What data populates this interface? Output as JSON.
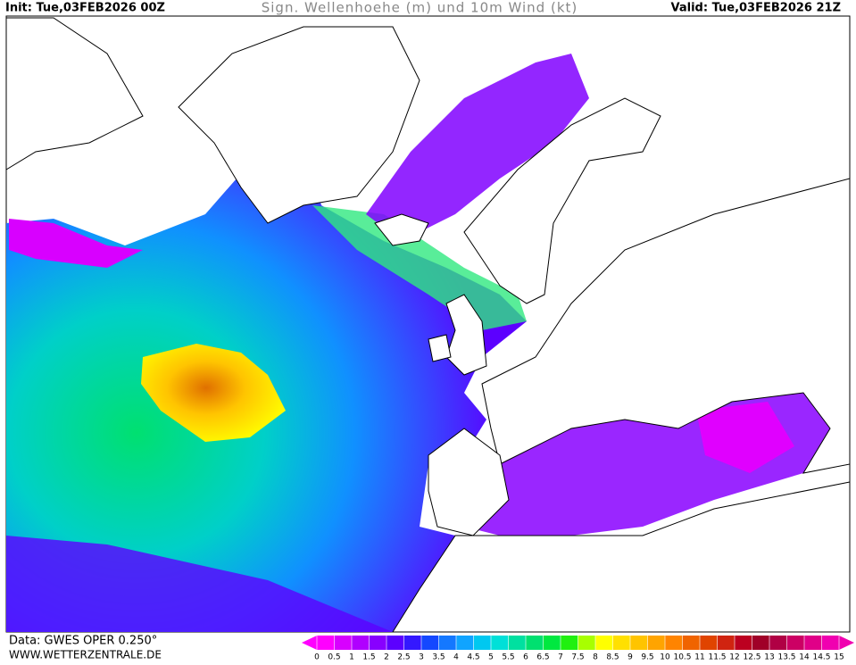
{
  "header": {
    "init": "Init: Tue,03FEB2026 00Z",
    "title": "Sign. Wellenhoehe (m) und 10m Wind (kt)",
    "valid": "Valid: Tue,03FEB2026 21Z"
  },
  "footer": {
    "source": "Data: GWES OPER 0.250°",
    "url": "WWW.WETTERZENTRALE.DE"
  },
  "legend": {
    "ticks": [
      0,
      0.5,
      1,
      1.5,
      2,
      2.5,
      3,
      3.5,
      4,
      4.5,
      5,
      5.5,
      6,
      6.5,
      7,
      7.5,
      8,
      8.5,
      9,
      9.5,
      10,
      10.5,
      11,
      11.5,
      12,
      12.5,
      13,
      13.5,
      14,
      14.5,
      15
    ],
    "colors": [
      "#ff00ff",
      "#d800ff",
      "#b000ff",
      "#8800ff",
      "#5c00ff",
      "#3418ff",
      "#1448ff",
      "#1478ff",
      "#10a4ff",
      "#00c8f0",
      "#00e0d8",
      "#00e0a0",
      "#00e070",
      "#00e840",
      "#20f010",
      "#a8ff00",
      "#ffff00",
      "#ffe000",
      "#ffc400",
      "#ffa400",
      "#ff8400",
      "#f06400",
      "#e04400",
      "#d02410",
      "#bc0020",
      "#a00028",
      "#b00044",
      "#cc0064",
      "#e00088",
      "#f000b0"
    ]
  }
}
